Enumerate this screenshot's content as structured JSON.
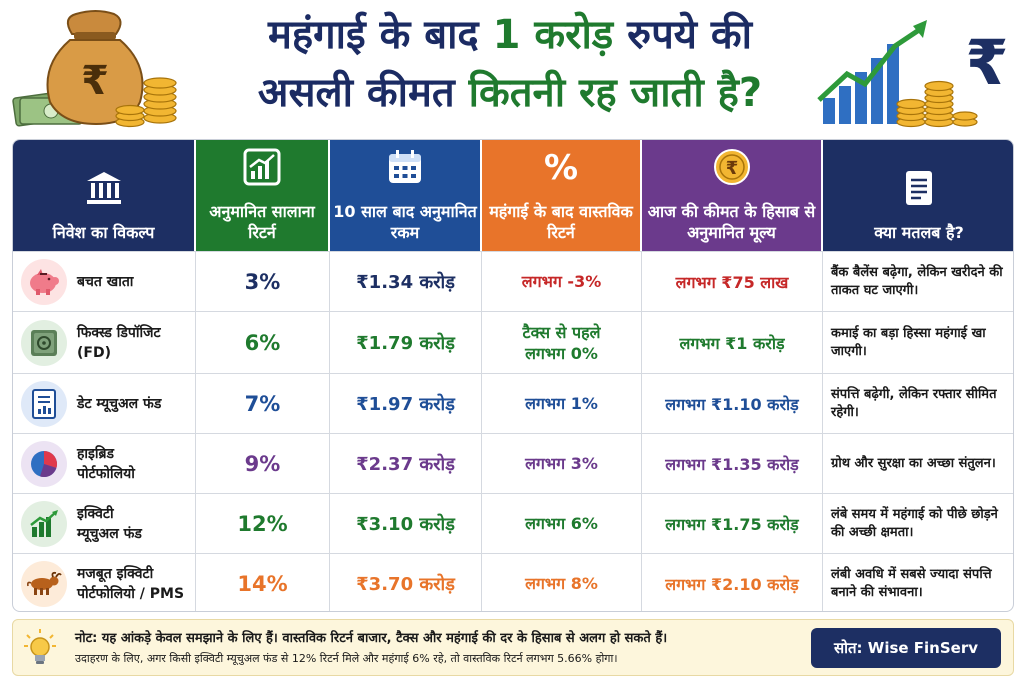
{
  "title": {
    "line1_pre": "महंगाई के बाद ",
    "line1_hl": "1 करोड़",
    "line1_post": " रुपये की",
    "line2_pre": "असली कीमत ",
    "line2_hl": "कितनी रह जाती है?"
  },
  "colors": {
    "navy": "#1d2f63",
    "green": "#1f7a2e",
    "blue": "#1f4e97",
    "orange": "#e8742a",
    "purple": "#6b3a8c",
    "red": "#c62828"
  },
  "table": {
    "headers": [
      {
        "label": "निवेश का विकल्प",
        "icon": "bank-icon"
      },
      {
        "label": "अनुमानित सालाना रिटर्न",
        "icon": "growth-chart-icon"
      },
      {
        "label": "10 साल बाद अनुमानित रकम",
        "icon": "calendar-icon"
      },
      {
        "label": "महंगाई के बाद वास्तविक रिटर्न",
        "icon": "percent-icon"
      },
      {
        "label": "आज की कीमत के हिसाब से अनुमानित मूल्य",
        "icon": "rupee-coin-icon"
      },
      {
        "label": "क्या मतलब है?",
        "icon": "document-icon"
      }
    ],
    "rows": [
      {
        "name_l1": "बचत खाता",
        "name_l2": "",
        "icon": "piggy-bank-icon",
        "return": "3%",
        "amount": "₹1.34 करोड़",
        "real_l1": "लगभग -3%",
        "real_l2": "",
        "value": "लगभग ₹75 लाख",
        "meaning": "बैंक बैलेंस बढ़ेगा, लेकिन खरीदने की ताकत घट जाएगी।"
      },
      {
        "name_l1": "फिक्स्ड डिपॉजिट",
        "name_l2": "(FD)",
        "icon": "safe-icon",
        "return": "6%",
        "amount": "₹1.79 करोड़",
        "real_l1": "टैक्स से पहले",
        "real_l2": "लगभग 0%",
        "value": "लगभग ₹1 करोड़",
        "meaning": "कमाई का बड़ा हिस्सा महंगाई खा जाएगी।"
      },
      {
        "name_l1": "डेट म्यूचुअल फंड",
        "name_l2": "",
        "icon": "report-icon",
        "return": "7%",
        "amount": "₹1.97 करोड़",
        "real_l1": "लगभग 1%",
        "real_l2": "",
        "value": "लगभग ₹1.10 करोड़",
        "meaning": "संपत्ति बढ़ेगी, लेकिन रफ्तार सीमित रहेगी।"
      },
      {
        "name_l1": "हाइब्रिड",
        "name_l2": "पोर्टफोलियो",
        "icon": "pie-chart-icon",
        "return": "9%",
        "amount": "₹2.37 करोड़",
        "real_l1": "लगभग 3%",
        "real_l2": "",
        "value": "लगभग ₹1.35 करोड़",
        "meaning": "ग्रोथ और सुरक्षा का अच्छा संतुलन।"
      },
      {
        "name_l1": "इक्विटी",
        "name_l2": "म्यूचुअल फंड",
        "icon": "bar-chart-icon",
        "return": "12%",
        "amount": "₹3.10 करोड़",
        "real_l1": "लगभग 6%",
        "real_l2": "",
        "value": "लगभग ₹1.75 करोड़",
        "meaning": "लंबे समय में महंगाई को पीछे छोड़ने की अच्छी क्षमता।"
      },
      {
        "name_l1": "मजबूत इक्विटी",
        "name_l2": "पोर्टफोलियो / PMS",
        "icon": "bull-icon",
        "return": "14%",
        "amount": "₹3.70 करोड़",
        "real_l1": "लगभग 8%",
        "real_l2": "",
        "value": "लगभग ₹2.10 करोड़",
        "meaning": "लंबी अवधि में सबसे ज्यादा संपत्ति बनाने की संभावना।"
      }
    ]
  },
  "footer": {
    "note_line1": "नोट: यह आंकड़े केवल समझाने के लिए हैं। वास्तविक रिटर्न बाजार, टैक्स और महंगाई की दर के हिसाब से अलग हो सकते हैं।",
    "note_line2": "उदाहरण के लिए, अगर किसी इक्विटी म्यूचुअल फंड से 12% रिटर्न मिले और महंगाई 6% रहे, तो वास्तविक रिटर्न लगभग 5.66% होगा।",
    "source": "सोत: Wise FinServ"
  }
}
